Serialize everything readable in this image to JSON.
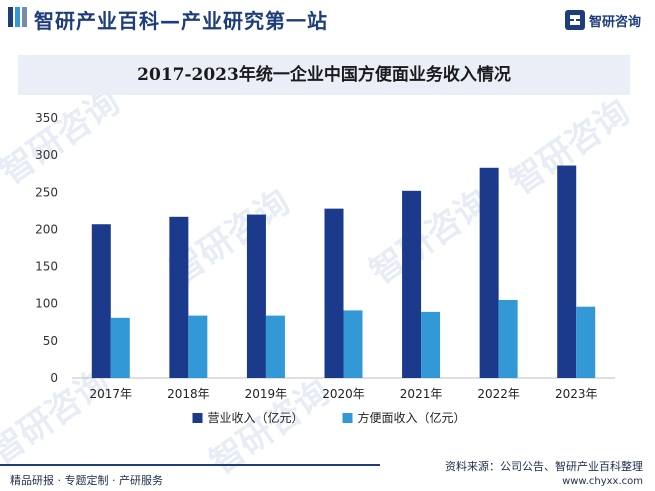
{
  "header": {
    "slogan": "智研产业百科—产业研究第一站",
    "brand_name": "智研咨询"
  },
  "watermark_text": "智研咨询",
  "colors": {
    "series_revenue": "#1b3a8c",
    "series_instant": "#3399d6",
    "title_bg": "#e9eef7",
    "brand": "#1d3d7c"
  },
  "chart_data": {
    "type": "bar",
    "title": "2017-2023年统一企业中国方便面业务收入情况",
    "categories": [
      "2017年",
      "2018年",
      "2019年",
      "2020年",
      "2021年",
      "2022年",
      "2023年"
    ],
    "series": [
      {
        "name": "营业收入（亿元）",
        "values": [
          207,
          217,
          220,
          228,
          252,
          283,
          286
        ]
      },
      {
        "name": "方便面收入（亿元）",
        "values": [
          81,
          84,
          84,
          91,
          89,
          105,
          96
        ]
      }
    ],
    "y_ticks": [
      0,
      50,
      100,
      150,
      200,
      250,
      300,
      350
    ],
    "ylim": [
      0,
      350
    ],
    "grid": false,
    "legend_position": "bottom-center"
  },
  "footer": {
    "left_text": "精品研报 · 专题定制 · 产研服务",
    "source": "资料来源：公司公告、智研产业百科整理",
    "website": "www.chyxx.com"
  }
}
